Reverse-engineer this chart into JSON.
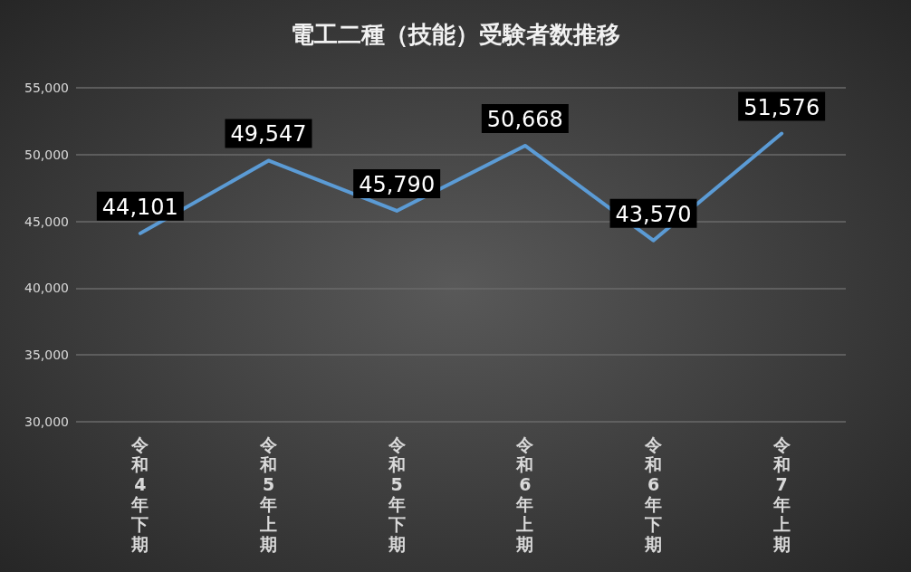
{
  "chart_data": {
    "type": "line",
    "title": "電工二種（技能）受験者数推移",
    "categories": [
      "令和4年下期",
      "令和5年上期",
      "令和5年下期",
      "令和6年上期",
      "令和6年下期",
      "令和7年上期"
    ],
    "series": [
      {
        "color": "#5b9bd5",
        "values": [
          44101,
          49547,
          45790,
          50668,
          43570,
          51576
        ],
        "value_labels": [
          "44,101",
          "49,547",
          "45,790",
          "50,668",
          "43,570",
          "51,576"
        ]
      }
    ],
    "ylim": [
      30000,
      55000
    ],
    "yticks": [
      {
        "value": 30000,
        "label": "30,000"
      },
      {
        "value": 35000,
        "label": "35,000"
      },
      {
        "value": 40000,
        "label": "40,000"
      },
      {
        "value": 45000,
        "label": "45,000"
      },
      {
        "value": 50000,
        "label": "50,000"
      },
      {
        "value": 55000,
        "label": "55,000"
      }
    ],
    "grid": "y",
    "marker": "none",
    "line_style": "solid"
  }
}
